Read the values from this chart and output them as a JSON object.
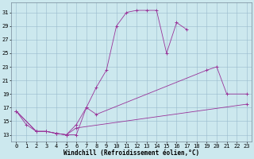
{
  "bg_color": "#cce8ee",
  "line_color": "#993399",
  "xlim": [
    -0.5,
    23.5
  ],
  "ylim": [
    12,
    32.5
  ],
  "xticks": [
    0,
    1,
    2,
    3,
    4,
    5,
    6,
    7,
    8,
    9,
    10,
    11,
    12,
    13,
    14,
    15,
    16,
    17,
    18,
    19,
    20,
    21,
    22,
    23
  ],
  "yticks": [
    13,
    15,
    17,
    19,
    21,
    23,
    25,
    27,
    29,
    31
  ],
  "xlabel": "Windchill (Refroidissement éolien,°C)",
  "xlabel_fontsize": 5.5,
  "tick_fontsize": 5,
  "curve1_x": [
    0,
    1,
    2,
    3,
    4,
    5,
    6,
    7,
    8,
    9,
    10,
    11,
    12,
    13,
    14,
    15,
    16,
    17
  ],
  "curve1_y": [
    16.5,
    14.5,
    13.5,
    13.5,
    13.2,
    13.0,
    13.0,
    17.0,
    20.0,
    22.5,
    29.0,
    31.0,
    31.3,
    31.3,
    31.3,
    25.0,
    29.5,
    28.5
  ],
  "curve2_x": [
    0,
    2,
    3,
    4,
    5,
    6,
    7,
    8,
    19,
    20,
    21,
    23
  ],
  "curve2_y": [
    16.5,
    13.5,
    13.5,
    13.2,
    13.0,
    14.5,
    17.0,
    16.0,
    22.5,
    23.0,
    19.0,
    19.0
  ],
  "curve3_x": [
    0,
    2,
    3,
    4,
    5,
    6,
    23
  ],
  "curve3_y": [
    16.5,
    13.5,
    13.5,
    13.2,
    13.0,
    14.0,
    17.5
  ]
}
